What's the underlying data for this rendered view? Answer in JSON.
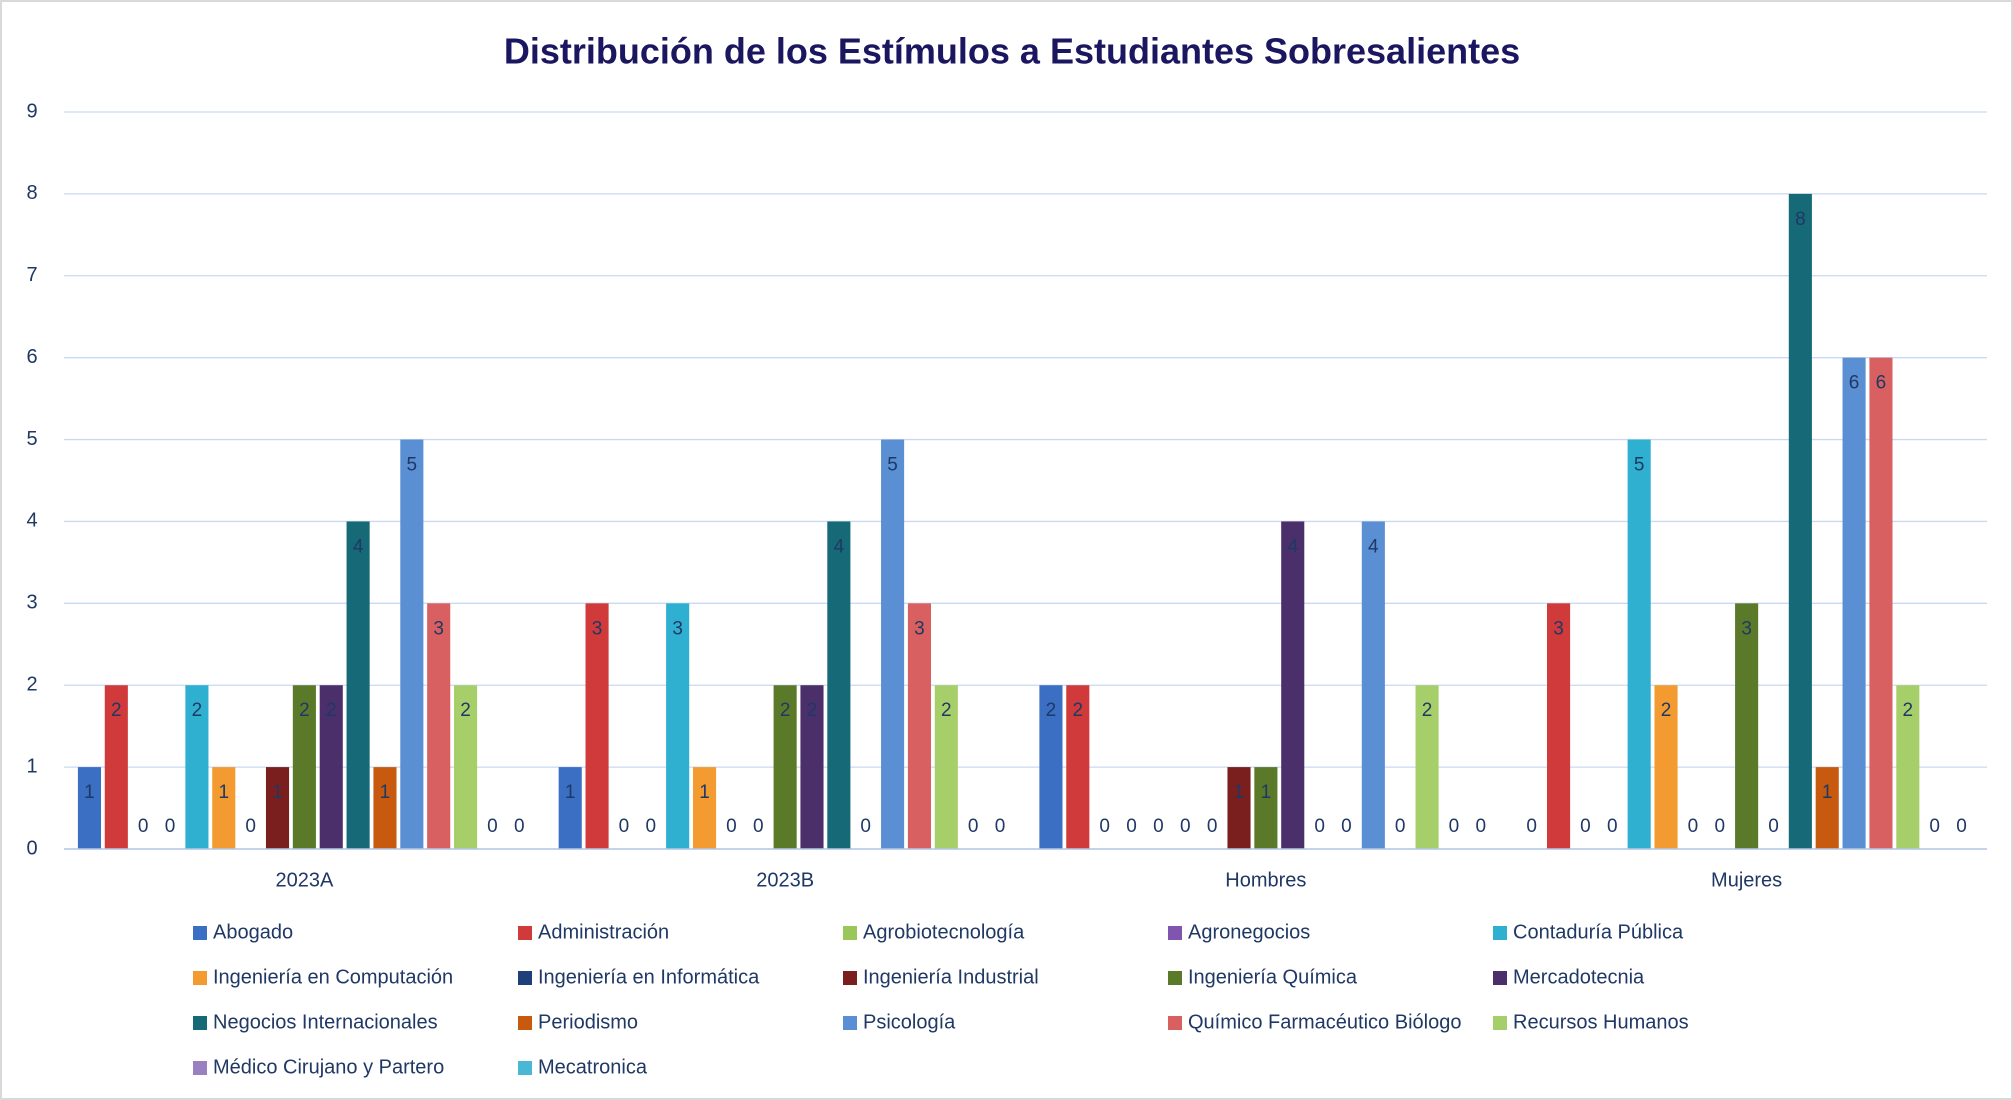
{
  "chart_data": {
    "type": "bar",
    "title": "Distribución de los Estímulos a Estudiantes Sobresalientes",
    "categories": [
      "2023A",
      "2023B",
      "Hombres",
      "Mujeres"
    ],
    "series": [
      {
        "name": "Abogado",
        "color": "#3a6fc4",
        "values": [
          1,
          1,
          2,
          0
        ]
      },
      {
        "name": "Administración",
        "color": "#d03a3a",
        "values": [
          2,
          3,
          2,
          3
        ]
      },
      {
        "name": "Agrobiotecnología",
        "color": "#9bc65a",
        "values": [
          0,
          0,
          0,
          0
        ]
      },
      {
        "name": "Agronegocios",
        "color": "#7f55b0",
        "values": [
          0,
          0,
          0,
          0
        ]
      },
      {
        "name": "Contaduría Pública",
        "color": "#2fb0d0",
        "values": [
          2,
          3,
          0,
          5
        ]
      },
      {
        "name": "Ingeniería en Computación",
        "color": "#f39a30",
        "values": [
          1,
          1,
          0,
          2
        ]
      },
      {
        "name": "Ingeniería en Informática",
        "color": "#1f3f7a",
        "values": [
          0,
          0,
          0,
          0
        ]
      },
      {
        "name": "Ingeniería Industrial",
        "color": "#7a1e1e",
        "values": [
          1,
          0,
          1,
          0
        ]
      },
      {
        "name": "Ingeniería Química",
        "color": "#5a7a2a",
        "values": [
          2,
          2,
          1,
          3
        ]
      },
      {
        "name": "Mercadotecnia",
        "color": "#4a2f6a",
        "values": [
          2,
          2,
          4,
          0
        ]
      },
      {
        "name": "Negocios Internacionales",
        "color": "#166a78",
        "values": [
          4,
          4,
          0,
          8
        ]
      },
      {
        "name": "Periodismo",
        "color": "#c85a10",
        "values": [
          1,
          0,
          0,
          1
        ]
      },
      {
        "name": "Psicología",
        "color": "#5a8fd4",
        "values": [
          5,
          5,
          4,
          6
        ]
      },
      {
        "name": "Químico Farmacéutico Biólogo",
        "color": "#d96060",
        "values": [
          3,
          3,
          0,
          6
        ]
      },
      {
        "name": "Recursos Humanos",
        "color": "#a6cf6a",
        "values": [
          2,
          2,
          2,
          2
        ]
      },
      {
        "name": "Médico Cirujano y Partero",
        "color": "#9a80c0",
        "values": [
          0,
          0,
          0,
          0
        ]
      },
      {
        "name": "Mecatronica",
        "color": "#4ab8d4",
        "values": [
          0,
          0,
          0,
          0
        ]
      }
    ],
    "ylim": [
      0,
      9
    ],
    "yticks": [
      0,
      1,
      2,
      3,
      4,
      5,
      6,
      7,
      8,
      9
    ],
    "grid": true,
    "legend": "bottom"
  }
}
